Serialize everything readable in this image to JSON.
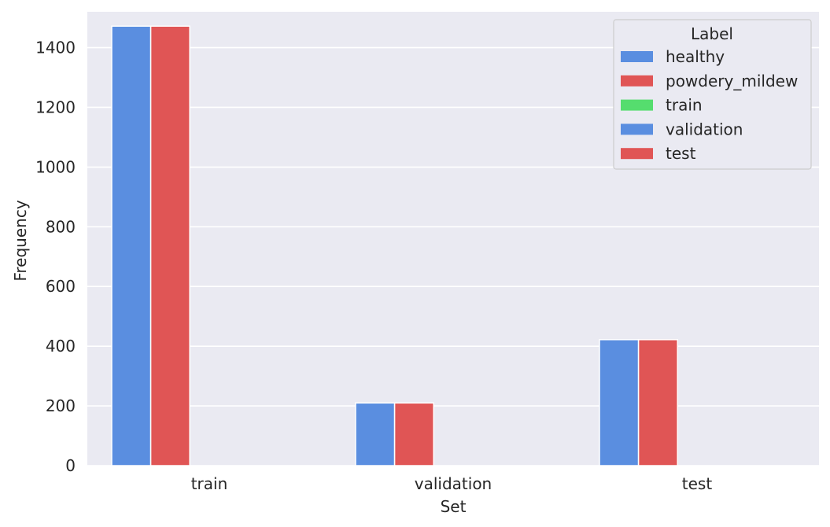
{
  "chart_data": {
    "type": "bar",
    "categories": [
      "train",
      "validation",
      "test"
    ],
    "series": [
      {
        "name": "healthy",
        "color": "#5A8EE0",
        "values": [
          1472,
          210,
          422
        ]
      },
      {
        "name": "powdery_mildew",
        "color": "#E05555",
        "values": [
          1472,
          210,
          422
        ]
      },
      {
        "name": "train",
        "color": "#55DD6E",
        "values": [
          0,
          0,
          0
        ]
      },
      {
        "name": "validation",
        "color": "#5A8EE0",
        "values": [
          0,
          0,
          0
        ]
      },
      {
        "name": "test",
        "color": "#E05555",
        "values": [
          0,
          0,
          0
        ]
      }
    ],
    "title": "",
    "xlabel": "Set",
    "ylabel": "Frequency",
    "ylim": [
      0,
      1520
    ],
    "yticks": [
      0,
      200,
      400,
      600,
      800,
      1000,
      1200,
      1400
    ],
    "grid": true,
    "legend": {
      "title": "Label",
      "placement": "top-right"
    },
    "plot_background": "#EAEAF2"
  }
}
